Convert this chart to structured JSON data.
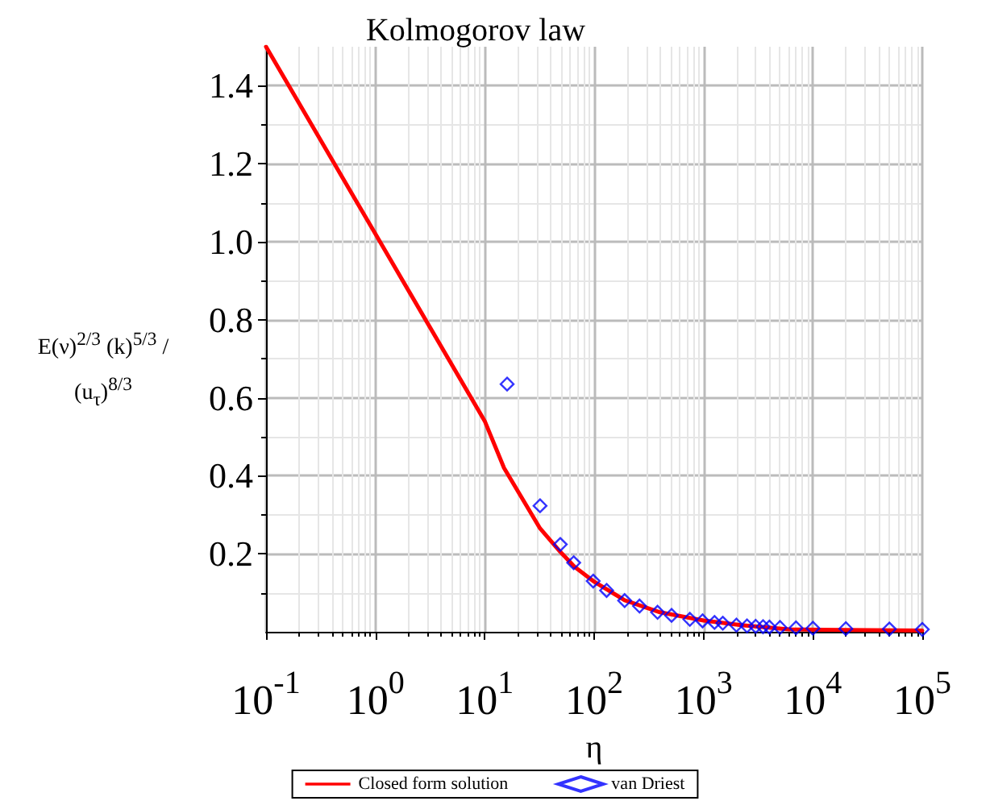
{
  "chart_data": {
    "type": "line",
    "title": "Kolmogorov law",
    "xlabel": "η",
    "ylabel": "E(ν)$^{2/3}$ (k)$^{5/3}$ / (u$_{τ}$)$^{8/3}$",
    "log": "x",
    "grid": true,
    "legend": "bottom",
    "xlim": [
      0.1,
      100000
    ],
    "xticks": [
      {
        "value": 0.1,
        "label": "10$^{-1}$"
      },
      {
        "value": 1,
        "label": "10$^{0}$"
      },
      {
        "value": 10,
        "label": "10$^{1}$"
      },
      {
        "value": 100,
        "label": "10$^{2}$"
      },
      {
        "value": 1000,
        "label": "10$^{3}$"
      },
      {
        "value": 10000,
        "label": "10$^{4}$"
      },
      {
        "value": 100000,
        "label": "10$^{5}$"
      }
    ],
    "ylim": [
      0,
      1.5
    ],
    "yticks": [
      {
        "value": 0.2,
        "label": "0.2"
      },
      {
        "value": 0.4,
        "label": "0.4"
      },
      {
        "value": 0.6,
        "label": "0.6"
      },
      {
        "value": 0.8,
        "label": "0.8"
      },
      {
        "value": 1.0,
        "label": "1.0"
      },
      {
        "value": 1.2,
        "label": "1.2"
      },
      {
        "value": 1.4,
        "label": "1.4"
      }
    ],
    "series": [
      {
        "name": "Closed form solution",
        "color": "#ff0000",
        "line_style": "solid",
        "x": [
          0.1,
          1,
          10,
          15,
          32,
          49,
          66,
          98,
          190,
          400,
          1000,
          2200,
          6000,
          100000
        ],
        "values": [
          1.5,
          1.02,
          0.54,
          0.42,
          0.265,
          0.205,
          0.167,
          0.13,
          0.081,
          0.05,
          0.029,
          0.017,
          0.006,
          0.003
        ]
      },
      {
        "name": "van Driest",
        "type": "scatter",
        "color": "#0000ff",
        "marker": "diamond",
        "x": [
          16,
          32,
          49,
          65,
          98,
          130,
          190,
          260,
          380,
          510,
          750,
          980,
          1260,
          1500,
          2000,
          2500,
          3000,
          3500,
          4000,
          5000,
          7000,
          10000,
          20000,
          50000,
          100000
        ],
        "values": [
          0.635,
          0.323,
          0.224,
          0.177,
          0.13,
          0.106,
          0.08,
          0.066,
          0.05,
          0.042,
          0.032,
          0.028,
          0.024,
          0.022,
          0.017,
          0.015,
          0.014,
          0.013,
          0.012,
          0.011,
          0.01,
          0.009,
          0.008,
          0.007,
          0.006
        ]
      }
    ]
  }
}
